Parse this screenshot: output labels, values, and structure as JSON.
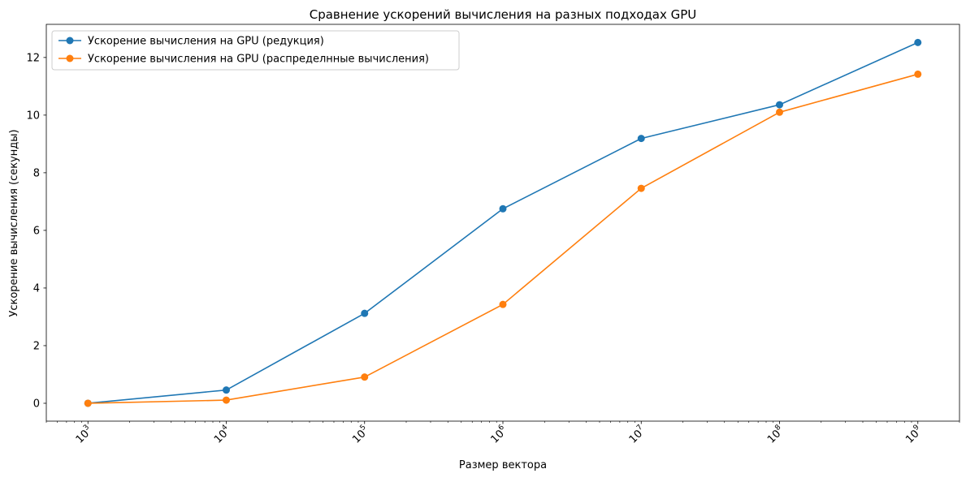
{
  "chart_data": {
    "type": "line",
    "title": "Сравнение ускорений вычисления на разных подходах GPU",
    "xlabel": "Размер вектора",
    "ylabel": "Ускорение вычисления (секунды)",
    "x_scale": "log",
    "x": [
      1000,
      10000,
      100000,
      1000000,
      10000000,
      100000000,
      1000000000
    ],
    "x_tick_labels": [
      {
        "base": "10",
        "exp": "3"
      },
      {
        "base": "10",
        "exp": "4"
      },
      {
        "base": "10",
        "exp": "5"
      },
      {
        "base": "10",
        "exp": "6"
      },
      {
        "base": "10",
        "exp": "7"
      },
      {
        "base": "10",
        "exp": "8"
      },
      {
        "base": "10",
        "exp": "9"
      }
    ],
    "xlim": [
      500,
      2000000000
    ],
    "ylim": [
      -0.62,
      13.15
    ],
    "y_ticks": [
      0,
      2,
      4,
      6,
      8,
      10,
      12
    ],
    "y_tick_labels": [
      "0",
      "2",
      "4",
      "6",
      "8",
      "10",
      "12"
    ],
    "grid": false,
    "legend_position": "top-left",
    "series": [
      {
        "name": "Ускорение вычисления на GPU (редукция)",
        "color": "#1f77b4",
        "values": [
          0.0,
          0.46,
          3.12,
          6.75,
          9.19,
          10.36,
          12.52
        ]
      },
      {
        "name": "Ускорение вычисления на GPU (распределнные вычисления)",
        "color": "#ff7f0e",
        "values": [
          0.0,
          0.11,
          0.91,
          3.43,
          7.46,
          10.1,
          11.42
        ]
      }
    ]
  }
}
